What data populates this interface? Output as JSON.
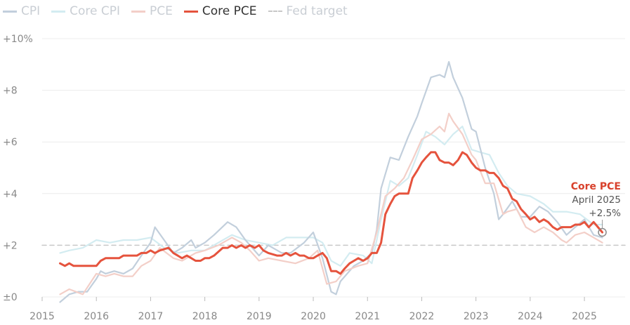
{
  "chart_data": {
    "type": "line",
    "ylim": [
      0,
      10
    ],
    "xlim": [
      2015.0,
      2025.75
    ],
    "y_ticks": [
      {
        "value": 0,
        "label": "±0"
      },
      {
        "value": 2,
        "label": "+2"
      },
      {
        "value": 4,
        "label": "+4"
      },
      {
        "value": 6,
        "label": "+6"
      },
      {
        "value": 8,
        "label": "+8"
      },
      {
        "value": 10,
        "label": "+10%"
      }
    ],
    "x_ticks": [
      "2015",
      "2016",
      "2017",
      "2018",
      "2019",
      "2020",
      "2021",
      "2022",
      "2023",
      "2024",
      "2025"
    ],
    "grid": "horizontal",
    "legend_position": "top-left",
    "fed_target": 2,
    "series": [
      {
        "name": "CPI",
        "color": "#c2cfdc",
        "emphasis": false,
        "points": [
          [
            2015.33,
            -0.2
          ],
          [
            2015.5,
            0.1
          ],
          [
            2015.67,
            0.2
          ],
          [
            2015.83,
            0.2
          ],
          [
            2016.0,
            0.7
          ],
          [
            2016.08,
            1.0
          ],
          [
            2016.17,
            0.9
          ],
          [
            2016.33,
            1.0
          ],
          [
            2016.5,
            0.9
          ],
          [
            2016.67,
            1.1
          ],
          [
            2016.83,
            1.6
          ],
          [
            2017.0,
            2.1
          ],
          [
            2017.08,
            2.7
          ],
          [
            2017.25,
            2.2
          ],
          [
            2017.42,
            1.7
          ],
          [
            2017.58,
            1.9
          ],
          [
            2017.75,
            2.2
          ],
          [
            2017.83,
            1.9
          ],
          [
            2018.0,
            2.1
          ],
          [
            2018.17,
            2.4
          ],
          [
            2018.42,
            2.9
          ],
          [
            2018.58,
            2.7
          ],
          [
            2018.75,
            2.2
          ],
          [
            2019.0,
            1.6
          ],
          [
            2019.17,
            2.0
          ],
          [
            2019.42,
            1.7
          ],
          [
            2019.58,
            1.7
          ],
          [
            2019.83,
            2.1
          ],
          [
            2020.0,
            2.5
          ],
          [
            2020.17,
            1.5
          ],
          [
            2020.33,
            0.2
          ],
          [
            2020.42,
            0.1
          ],
          [
            2020.5,
            0.6
          ],
          [
            2020.75,
            1.2
          ],
          [
            2020.92,
            1.4
          ],
          [
            2021.08,
            1.7
          ],
          [
            2021.17,
            2.6
          ],
          [
            2021.25,
            4.2
          ],
          [
            2021.42,
            5.4
          ],
          [
            2021.58,
            5.3
          ],
          [
            2021.75,
            6.2
          ],
          [
            2021.92,
            7.0
          ],
          [
            2022.0,
            7.5
          ],
          [
            2022.17,
            8.5
          ],
          [
            2022.33,
            8.6
          ],
          [
            2022.42,
            8.5
          ],
          [
            2022.5,
            9.1
          ],
          [
            2022.58,
            8.5
          ],
          [
            2022.75,
            7.7
          ],
          [
            2022.92,
            6.5
          ],
          [
            2023.0,
            6.4
          ],
          [
            2023.17,
            5.0
          ],
          [
            2023.33,
            4.0
          ],
          [
            2023.42,
            3.0
          ],
          [
            2023.5,
            3.2
          ],
          [
            2023.67,
            3.7
          ],
          [
            2023.83,
            3.1
          ],
          [
            2024.0,
            3.1
          ],
          [
            2024.17,
            3.5
          ],
          [
            2024.33,
            3.3
          ],
          [
            2024.5,
            2.9
          ],
          [
            2024.67,
            2.4
          ],
          [
            2024.83,
            2.7
          ],
          [
            2025.0,
            3.0
          ],
          [
            2025.17,
            2.4
          ],
          [
            2025.33,
            2.3
          ]
        ]
      },
      {
        "name": "Core CPI",
        "color": "#d3ecf1",
        "emphasis": false,
        "points": [
          [
            2015.33,
            1.7
          ],
          [
            2015.5,
            1.8
          ],
          [
            2015.75,
            1.9
          ],
          [
            2016.0,
            2.2
          ],
          [
            2016.25,
            2.1
          ],
          [
            2016.5,
            2.2
          ],
          [
            2016.75,
            2.2
          ],
          [
            2017.0,
            2.3
          ],
          [
            2017.25,
            1.9
          ],
          [
            2017.5,
            1.7
          ],
          [
            2017.75,
            1.8
          ],
          [
            2018.0,
            1.8
          ],
          [
            2018.25,
            2.1
          ],
          [
            2018.5,
            2.4
          ],
          [
            2018.75,
            2.2
          ],
          [
            2019.0,
            2.1
          ],
          [
            2019.25,
            2.0
          ],
          [
            2019.5,
            2.3
          ],
          [
            2019.75,
            2.3
          ],
          [
            2020.0,
            2.3
          ],
          [
            2020.17,
            2.1
          ],
          [
            2020.33,
            1.4
          ],
          [
            2020.5,
            1.2
          ],
          [
            2020.67,
            1.7
          ],
          [
            2020.92,
            1.6
          ],
          [
            2021.08,
            1.3
          ],
          [
            2021.25,
            3.0
          ],
          [
            2021.42,
            4.5
          ],
          [
            2021.58,
            4.3
          ],
          [
            2021.75,
            4.6
          ],
          [
            2021.92,
            5.5
          ],
          [
            2022.08,
            6.4
          ],
          [
            2022.25,
            6.2
          ],
          [
            2022.42,
            5.9
          ],
          [
            2022.58,
            6.3
          ],
          [
            2022.75,
            6.6
          ],
          [
            2022.92,
            5.7
          ],
          [
            2023.08,
            5.6
          ],
          [
            2023.25,
            5.5
          ],
          [
            2023.42,
            4.8
          ],
          [
            2023.58,
            4.3
          ],
          [
            2023.75,
            4.0
          ],
          [
            2024.0,
            3.9
          ],
          [
            2024.25,
            3.6
          ],
          [
            2024.42,
            3.3
          ],
          [
            2024.67,
            3.3
          ],
          [
            2024.92,
            3.2
          ],
          [
            2025.17,
            2.8
          ],
          [
            2025.33,
            2.8
          ]
        ]
      },
      {
        "name": "PCE",
        "color": "#f3cfc8",
        "emphasis": false,
        "points": [
          [
            2015.33,
            0.1
          ],
          [
            2015.5,
            0.3
          ],
          [
            2015.75,
            0.1
          ],
          [
            2016.0,
            0.9
          ],
          [
            2016.17,
            0.8
          ],
          [
            2016.33,
            0.9
          ],
          [
            2016.5,
            0.8
          ],
          [
            2016.67,
            0.8
          ],
          [
            2016.83,
            1.2
          ],
          [
            2017.0,
            1.4
          ],
          [
            2017.17,
            1.9
          ],
          [
            2017.42,
            1.5
          ],
          [
            2017.58,
            1.4
          ],
          [
            2017.83,
            1.7
          ],
          [
            2018.0,
            1.8
          ],
          [
            2018.25,
            2.0
          ],
          [
            2018.5,
            2.3
          ],
          [
            2018.67,
            2.1
          ],
          [
            2018.83,
            1.8
          ],
          [
            2019.0,
            1.4
          ],
          [
            2019.17,
            1.5
          ],
          [
            2019.42,
            1.4
          ],
          [
            2019.67,
            1.3
          ],
          [
            2019.92,
            1.5
          ],
          [
            2020.08,
            1.8
          ],
          [
            2020.25,
            0.5
          ],
          [
            2020.42,
            0.6
          ],
          [
            2020.58,
            1.0
          ],
          [
            2020.83,
            1.2
          ],
          [
            2021.0,
            1.3
          ],
          [
            2021.17,
            2.5
          ],
          [
            2021.33,
            3.9
          ],
          [
            2021.5,
            4.2
          ],
          [
            2021.67,
            4.6
          ],
          [
            2021.83,
            5.3
          ],
          [
            2022.0,
            6.1
          ],
          [
            2022.17,
            6.3
          ],
          [
            2022.33,
            6.6
          ],
          [
            2022.42,
            6.4
          ],
          [
            2022.5,
            7.1
          ],
          [
            2022.58,
            6.8
          ],
          [
            2022.75,
            6.3
          ],
          [
            2022.92,
            5.5
          ],
          [
            2023.0,
            5.3
          ],
          [
            2023.17,
            4.4
          ],
          [
            2023.33,
            4.4
          ],
          [
            2023.5,
            3.2
          ],
          [
            2023.58,
            3.3
          ],
          [
            2023.75,
            3.4
          ],
          [
            2023.92,
            2.7
          ],
          [
            2024.08,
            2.5
          ],
          [
            2024.25,
            2.7
          ],
          [
            2024.42,
            2.5
          ],
          [
            2024.58,
            2.2
          ],
          [
            2024.67,
            2.1
          ],
          [
            2024.83,
            2.4
          ],
          [
            2025.0,
            2.5
          ],
          [
            2025.17,
            2.3
          ],
          [
            2025.33,
            2.1
          ]
        ]
      },
      {
        "name": "Core PCE",
        "color": "#e5533d",
        "emphasis": true,
        "points": [
          [
            2015.33,
            1.3
          ],
          [
            2015.42,
            1.2
          ],
          [
            2015.5,
            1.3
          ],
          [
            2015.58,
            1.2
          ],
          [
            2016.0,
            1.2
          ],
          [
            2016.08,
            1.4
          ],
          [
            2016.17,
            1.5
          ],
          [
            2016.42,
            1.5
          ],
          [
            2016.5,
            1.6
          ],
          [
            2016.75,
            1.6
          ],
          [
            2016.83,
            1.7
          ],
          [
            2016.92,
            1.7
          ],
          [
            2017.0,
            1.8
          ],
          [
            2017.08,
            1.7
          ],
          [
            2017.17,
            1.8
          ],
          [
            2017.33,
            1.9
          ],
          [
            2017.42,
            1.7
          ],
          [
            2017.58,
            1.5
          ],
          [
            2017.67,
            1.6
          ],
          [
            2017.83,
            1.4
          ],
          [
            2017.92,
            1.4
          ],
          [
            2018.0,
            1.5
          ],
          [
            2018.08,
            1.5
          ],
          [
            2018.17,
            1.6
          ],
          [
            2018.33,
            1.9
          ],
          [
            2018.42,
            1.9
          ],
          [
            2018.5,
            2.0
          ],
          [
            2018.58,
            1.9
          ],
          [
            2018.67,
            2.0
          ],
          [
            2018.75,
            1.9
          ],
          [
            2018.83,
            2.0
          ],
          [
            2018.92,
            1.9
          ],
          [
            2019.0,
            2.0
          ],
          [
            2019.08,
            1.8
          ],
          [
            2019.17,
            1.7
          ],
          [
            2019.33,
            1.6
          ],
          [
            2019.42,
            1.6
          ],
          [
            2019.5,
            1.7
          ],
          [
            2019.58,
            1.6
          ],
          [
            2019.67,
            1.7
          ],
          [
            2019.75,
            1.6
          ],
          [
            2019.83,
            1.6
          ],
          [
            2019.92,
            1.5
          ],
          [
            2020.0,
            1.5
          ],
          [
            2020.08,
            1.6
          ],
          [
            2020.17,
            1.7
          ],
          [
            2020.25,
            1.5
          ],
          [
            2020.33,
            1.0
          ],
          [
            2020.42,
            1.0
          ],
          [
            2020.5,
            0.9
          ],
          [
            2020.58,
            1.1
          ],
          [
            2020.67,
            1.3
          ],
          [
            2020.75,
            1.4
          ],
          [
            2020.83,
            1.5
          ],
          [
            2020.92,
            1.4
          ],
          [
            2021.0,
            1.5
          ],
          [
            2021.08,
            1.7
          ],
          [
            2021.17,
            1.7
          ],
          [
            2021.25,
            2.1
          ],
          [
            2021.33,
            3.2
          ],
          [
            2021.42,
            3.6
          ],
          [
            2021.5,
            3.9
          ],
          [
            2021.58,
            4.0
          ],
          [
            2021.75,
            4.0
          ],
          [
            2021.83,
            4.6
          ],
          [
            2021.92,
            4.9
          ],
          [
            2022.0,
            5.2
          ],
          [
            2022.08,
            5.4
          ],
          [
            2022.17,
            5.6
          ],
          [
            2022.25,
            5.6
          ],
          [
            2022.33,
            5.3
          ],
          [
            2022.42,
            5.2
          ],
          [
            2022.5,
            5.2
          ],
          [
            2022.58,
            5.1
          ],
          [
            2022.67,
            5.3
          ],
          [
            2022.75,
            5.6
          ],
          [
            2022.83,
            5.5
          ],
          [
            2022.92,
            5.2
          ],
          [
            2023.0,
            5.0
          ],
          [
            2023.08,
            4.9
          ],
          [
            2023.17,
            4.9
          ],
          [
            2023.25,
            4.8
          ],
          [
            2023.33,
            4.8
          ],
          [
            2023.42,
            4.6
          ],
          [
            2023.5,
            4.3
          ],
          [
            2023.58,
            4.2
          ],
          [
            2023.67,
            3.8
          ],
          [
            2023.75,
            3.7
          ],
          [
            2023.83,
            3.4
          ],
          [
            2023.92,
            3.2
          ],
          [
            2024.0,
            3.0
          ],
          [
            2024.08,
            3.1
          ],
          [
            2024.17,
            2.9
          ],
          [
            2024.25,
            3.0
          ],
          [
            2024.33,
            2.9
          ],
          [
            2024.42,
            2.7
          ],
          [
            2024.5,
            2.6
          ],
          [
            2024.58,
            2.7
          ],
          [
            2024.67,
            2.7
          ],
          [
            2024.75,
            2.7
          ],
          [
            2024.83,
            2.8
          ],
          [
            2024.92,
            2.8
          ],
          [
            2025.0,
            2.9
          ],
          [
            2025.08,
            2.7
          ],
          [
            2025.17,
            2.9
          ],
          [
            2025.25,
            2.7
          ],
          [
            2025.33,
            2.5
          ]
        ]
      },
      {
        "name": "Fed target",
        "color": "#c8c8c8",
        "emphasis": false,
        "style": "dashed",
        "points": [
          [
            2015.0,
            2
          ],
          [
            2025.75,
            2
          ]
        ]
      }
    ],
    "annotation": {
      "title": "Core PCE",
      "date": "April 2025",
      "value": "+2.5%",
      "point": [
        2025.33,
        2.5
      ]
    }
  }
}
